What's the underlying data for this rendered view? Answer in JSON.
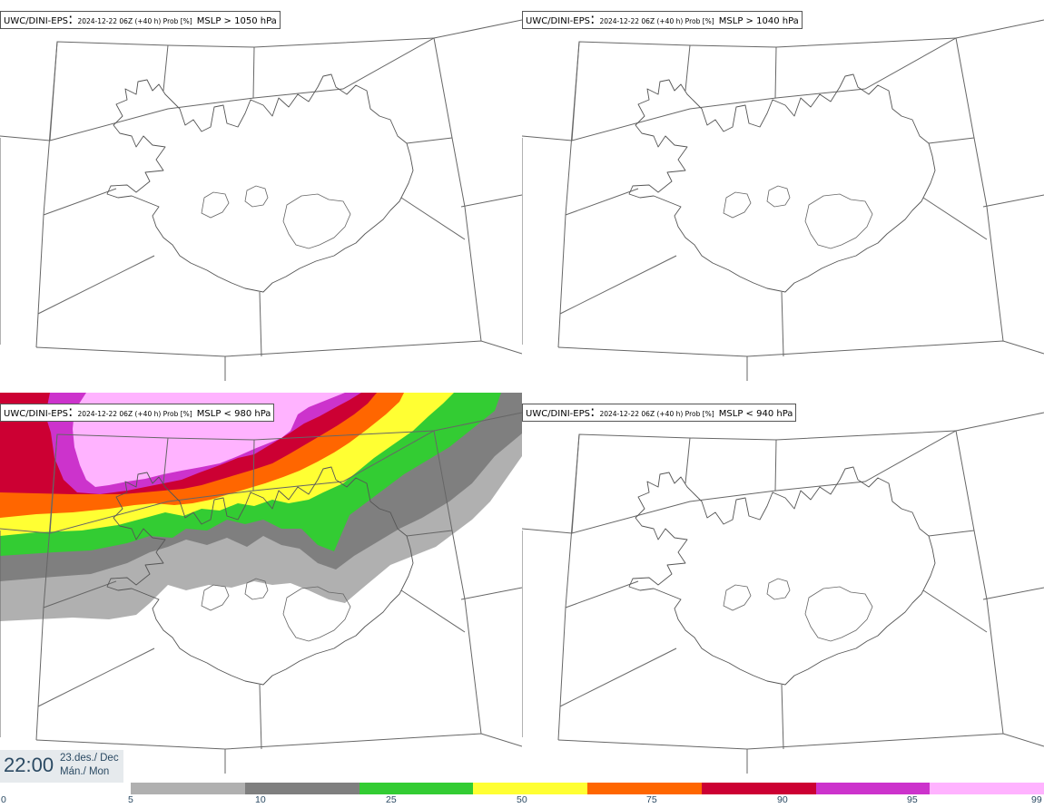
{
  "panels": [
    {
      "model": "UWC/DINI-EPS",
      "meta": "2024-12-22 06Z (+40 h) Prob [%]",
      "variable": "MSLP > 1050 hPa",
      "has_field": false
    },
    {
      "model": "UWC/DINI-EPS",
      "meta": "2024-12-22 06Z (+40 h) Prob [%]",
      "variable": "MSLP > 1040 hPa",
      "has_field": false
    },
    {
      "model": "UWC/DINI-EPS",
      "meta": "2024-12-22 06Z (+40 h) Prob [%]",
      "variable": "MSLP < 980 hPa",
      "has_field": true
    },
    {
      "model": "UWC/DINI-EPS",
      "meta": "2024-12-22 06Z (+40 h) Prob [%]",
      "variable": "MSLP < 940 hPa",
      "has_field": false
    }
  ],
  "time": {
    "clock": "22:00",
    "date_line1": "23.des./ Dec",
    "date_line2": "Mán./ Mon"
  },
  "legend": {
    "tick_labels": [
      "0",
      "5",
      "10",
      "25",
      "50",
      "75",
      "90",
      "95",
      "99"
    ],
    "colors": [
      "#b0b0b0",
      "#7f7f7f",
      "#33cc33",
      "#ffff33",
      "#ff6600",
      "#cc0033",
      "#cc33cc",
      "#ffb3ff"
    ]
  }
}
